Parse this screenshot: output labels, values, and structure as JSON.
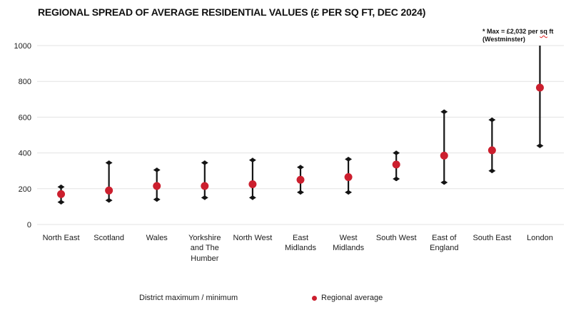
{
  "title": "REGIONAL SPREAD OF AVERAGE RESIDENTIAL VALUES (£ PER SQ FT, DEC 2024)",
  "annotation": {
    "line1_pre": "* Max = £2,032 per ",
    "line1_sq": "sq",
    "line1_post": " ft",
    "line2": "(Westminster)"
  },
  "legend": {
    "range_label": "District maximum / minimum",
    "average_label": "Regional average"
  },
  "colors": {
    "average_dot": "#cc1f2e",
    "range_bar": "#141414",
    "gridline": "#e3e3e3",
    "axis_text": "#1c1c1c"
  },
  "chart_data": {
    "type": "scatter",
    "title": "REGIONAL SPREAD OF AVERAGE RESIDENTIAL VALUES (£ PER SQ FT, DEC 2024)",
    "categories": [
      "North East",
      "Scotland",
      "Wales",
      "Yorkshire and The Humber",
      "North West",
      "East Midlands",
      "West Midlands",
      "South West",
      "East of England",
      "South East",
      "London"
    ],
    "series": [
      {
        "name": "District maximum",
        "values": [
          210,
          345,
          305,
          345,
          360,
          320,
          365,
          400,
          630,
          585,
          2032
        ]
      },
      {
        "name": "District minimum",
        "values": [
          125,
          135,
          140,
          150,
          150,
          180,
          180,
          255,
          235,
          300,
          440
        ]
      },
      {
        "name": "Regional average",
        "values": [
          170,
          190,
          215,
          215,
          225,
          250,
          265,
          335,
          385,
          415,
          765
        ]
      }
    ],
    "ylim": [
      0,
      1000
    ],
    "yticks": [
      0,
      200,
      400,
      600,
      800,
      1000
    ],
    "xlabel": "",
    "ylabel": "",
    "grid": "horizontal",
    "legend_position": "bottom",
    "clip_note": "London district maximum of £2,032 per sq ft (Westminster) exceeds the axis and the bar is clipped at 1,000"
  }
}
